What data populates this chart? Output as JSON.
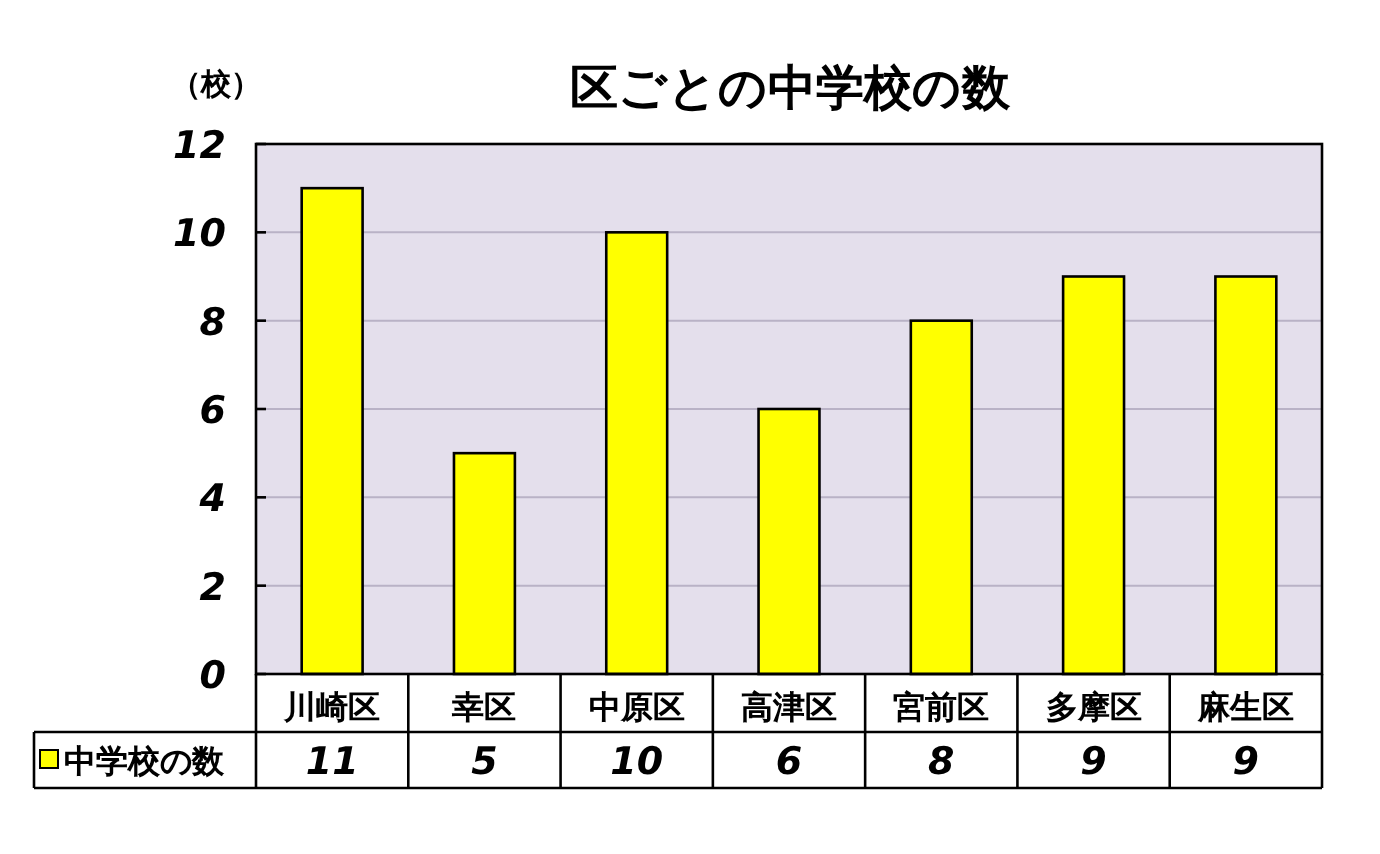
{
  "chart_data": {
    "type": "bar",
    "title": "区ごとの中学校の数",
    "ylabel": "（校）",
    "categories": [
      "川崎区",
      "幸区",
      "中原区",
      "高津区",
      "宮前区",
      "多摩区",
      "麻生区"
    ],
    "series": [
      {
        "name": "中学校の数",
        "color": "#ffff00",
        "values": [
          11,
          5,
          10,
          6,
          8,
          9,
          9
        ]
      }
    ],
    "ylim": [
      0,
      12
    ],
    "yticks": [
      0,
      2,
      4,
      6,
      8,
      10,
      12
    ],
    "grid": "y",
    "legend": "bottom left",
    "data_labels": true
  }
}
